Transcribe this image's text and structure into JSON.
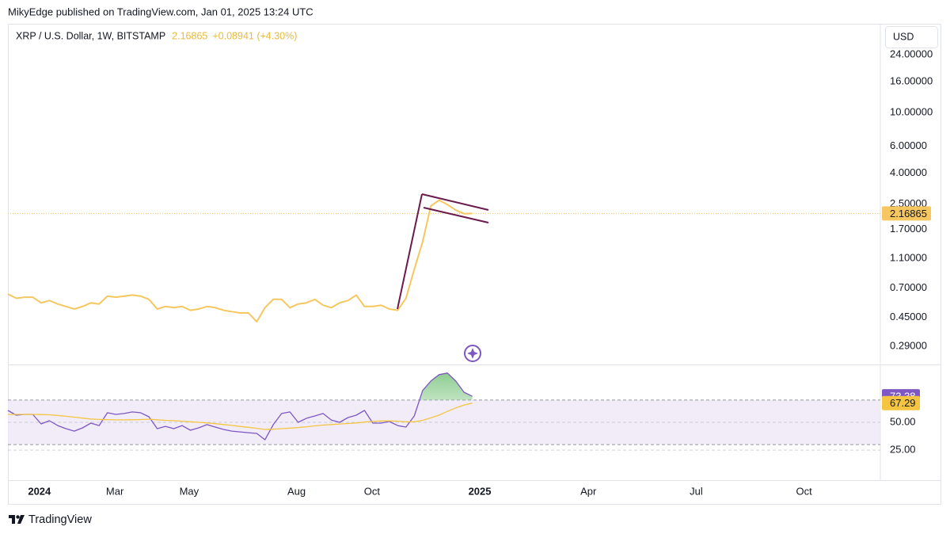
{
  "header": {
    "published": "MikyEdge published on TradingView.com, Jan 01, 2025 13:24 UTC",
    "symbol": "XRP / U.S. Dollar, 1W, BITSTAMP",
    "change": "+0.08941 (+4.30%)",
    "currency": "USD"
  },
  "footer": {
    "brand": "TradingView"
  },
  "chart_data": [
    {
      "type": "line",
      "log_scale": true,
      "ylim": [
        0.22,
        38.4
      ],
      "xlim": [
        0,
        105.2
      ],
      "yticks": [
        {
          "value": 24,
          "label": "24.00000"
        },
        {
          "value": 16,
          "label": "16.00000"
        },
        {
          "value": 10,
          "label": "10.00000"
        },
        {
          "value": 6,
          "label": "6.00000"
        },
        {
          "value": 4,
          "label": "4.00000"
        },
        {
          "value": 2.5,
          "label": "2.50000"
        },
        {
          "value": 1.7,
          "label": "1.70000"
        },
        {
          "value": 1.1,
          "label": "1.10000"
        },
        {
          "value": 0.7,
          "label": "0.70000"
        },
        {
          "value": 0.45,
          "label": "0.45000"
        },
        {
          "value": 0.29,
          "label": "0.29000"
        }
      ],
      "last_value_line": true,
      "series": [
        {
          "color": "#f6c760",
          "values": [
            0.64,
            0.6,
            0.61,
            0.61,
            0.56,
            0.58,
            0.55,
            0.53,
            0.51,
            0.53,
            0.56,
            0.55,
            0.62,
            0.61,
            0.62,
            0.63,
            0.62,
            0.59,
            0.51,
            0.53,
            0.52,
            0.53,
            0.5,
            0.51,
            0.53,
            0.52,
            0.5,
            0.49,
            0.48,
            0.48,
            0.42,
            0.52,
            0.59,
            0.59,
            0.52,
            0.55,
            0.56,
            0.59,
            0.54,
            0.52,
            0.56,
            0.58,
            0.63,
            0.53,
            0.53,
            0.54,
            0.51,
            0.5,
            0.6,
            0.93,
            1.41,
            2.43,
            2.65,
            2.48,
            2.28,
            2.16,
            2.16865
          ]
        }
      ]
    },
    {
      "type": "line",
      "ylim": [
        -2,
        102
      ],
      "xlim": [
        0,
        105.2
      ],
      "yticks": [
        {
          "value": 50,
          "label": "50.00"
        },
        {
          "value": 25,
          "label": "25.00"
        }
      ],
      "bands": [
        30,
        70
      ],
      "band_color": "#ede7f6",
      "xticks": [
        {
          "value": 3.8,
          "label": "2024"
        },
        {
          "value": 12.9,
          "label": "Mar"
        },
        {
          "value": 21.85,
          "label": "May"
        },
        {
          "value": 34.8,
          "label": "Aug"
        },
        {
          "value": 43.9,
          "label": "Oct"
        },
        {
          "value": 56.9,
          "label": "2025"
        },
        {
          "value": 70,
          "label": "Apr"
        },
        {
          "value": 83,
          "label": "Jul"
        },
        {
          "value": 96,
          "label": "Oct"
        }
      ],
      "series": [
        {
          "color": "#7e57c2",
          "values": [
            60.7,
            56.4,
            57.1,
            57.1,
            48.6,
            51.4,
            47.1,
            44.3,
            42.1,
            45,
            49.3,
            47.1,
            58.6,
            57.1,
            57.9,
            59.3,
            58.6,
            55,
            44.3,
            46.4,
            44.3,
            47.1,
            42.9,
            45,
            47.9,
            45.7,
            43.6,
            42.1,
            41.4,
            40.7,
            40,
            34.3,
            47.9,
            57.9,
            59.3,
            50,
            53.6,
            55.7,
            57.9,
            52.1,
            50,
            54.3,
            56.4,
            60.7,
            49.3,
            49.3,
            50.7,
            47.1,
            45.7,
            55.7,
            78.6,
            87.1,
            92.9,
            94.3,
            87.1,
            77.1,
            73.38
          ]
        },
        {
          "color": "#f5c542",
          "values": [
            57.1,
            57.1,
            57.1,
            57.1,
            57,
            56.8,
            56.2,
            55.4,
            54.6,
            53.8,
            53,
            52.6,
            52.4,
            52.2,
            52.2,
            52.3,
            52.5,
            52.8,
            52.3,
            51.8,
            51.5,
            51,
            50.5,
            50,
            49.5,
            48.8,
            48,
            47.2,
            46.3,
            45.5,
            44.6,
            43.6,
            43.8,
            44.3,
            44.8,
            45.3,
            46,
            46.8,
            47.5,
            48,
            48.5,
            48.9,
            49.4,
            50.2,
            50.8,
            51.2,
            51.3,
            51,
            50.5,
            50.5,
            51.8,
            54,
            56.5,
            59.8,
            63,
            65.5,
            67.29
          ]
        }
      ]
    }
  ]
}
